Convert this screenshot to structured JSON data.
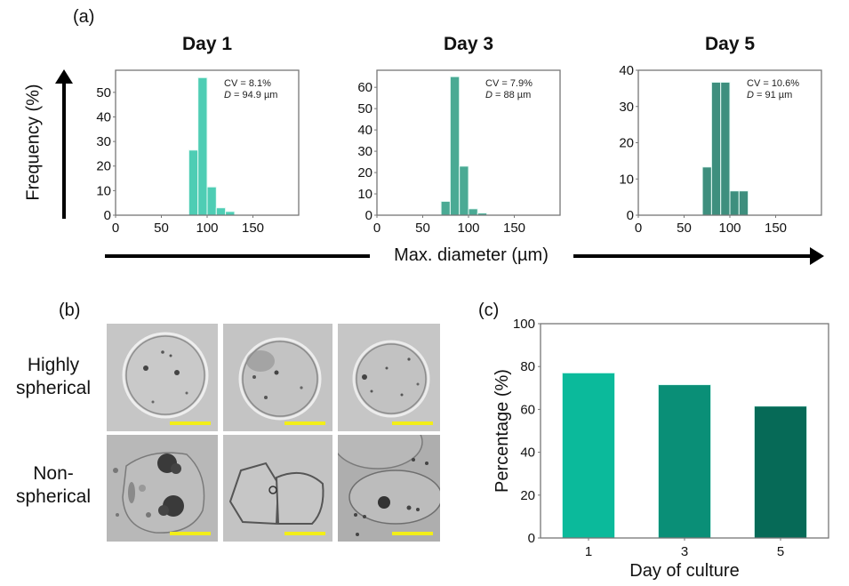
{
  "figure": {
    "panel_a_label": "(a)",
    "panel_b_label": "(b)",
    "panel_c_label": "(c)",
    "shared_ylabel": "Frequency (%)",
    "shared_xlabel": "Max. diameter (µm)"
  },
  "morphology": {
    "rows": [
      {
        "label_line1": "Highly",
        "label_line2": "spherical",
        "type": "spherical"
      },
      {
        "label_line1": "Non-",
        "label_line2": "spherical",
        "type": "non-spherical"
      }
    ],
    "columns": 3,
    "scalebar_color": "#f2ee19"
  },
  "chart_data": [
    {
      "type": "bar",
      "subtype": "histogram",
      "title": "Day 1",
      "xlabel": "Max. diameter (µm)",
      "ylabel": "Frequency (%)",
      "xlim": [
        0,
        200
      ],
      "ylim": [
        0,
        59
      ],
      "xticks": [
        0,
        50,
        100,
        150
      ],
      "yticks": [
        0,
        10,
        20,
        30,
        40,
        50
      ],
      "bin_width": 10,
      "bins": [
        80,
        90,
        100,
        110,
        120
      ],
      "values": [
        26.5,
        56,
        11.5,
        3,
        1.5
      ],
      "annotation_cv": "CV = 8.1%",
      "annotation_d_symbol": "D",
      "annotation_d_value": " = 94.9 µm",
      "color": "#4ecdb4",
      "grid": false
    },
    {
      "type": "bar",
      "subtype": "histogram",
      "title": "Day 3",
      "xlabel": "Max. diameter (µm)",
      "ylabel": "Frequency (%)",
      "xlim": [
        0,
        200
      ],
      "ylim": [
        0,
        68
      ],
      "xticks": [
        0,
        50,
        100,
        150
      ],
      "yticks": [
        0,
        10,
        20,
        30,
        40,
        50,
        60
      ],
      "bin_width": 10,
      "bins": [
        70,
        80,
        90,
        100,
        110
      ],
      "values": [
        6.5,
        65,
        23,
        3,
        1
      ],
      "annotation_cv": "CV = 7.9%",
      "annotation_d_symbol": "D",
      "annotation_d_value": " = 88 µm",
      "color": "#4aaa94",
      "grid": false
    },
    {
      "type": "bar",
      "subtype": "histogram",
      "title": "Day 5",
      "xlabel": "Max. diameter (µm)",
      "ylabel": "Frequency (%)",
      "xlim": [
        0,
        200
      ],
      "ylim": [
        0,
        40
      ],
      "xticks": [
        0,
        50,
        100,
        150
      ],
      "yticks": [
        0,
        10,
        20,
        30,
        40
      ],
      "bin_width": 10,
      "bins": [
        70,
        80,
        90,
        100,
        110
      ],
      "values": [
        13.3,
        36.7,
        36.7,
        6.7,
        6.7
      ],
      "annotation_cv": "CV = 10.6%",
      "annotation_d_symbol": "D",
      "annotation_d_value": " = 91 µm",
      "color": "#3e8f7e",
      "grid": false
    },
    {
      "type": "bar",
      "title": "",
      "xlabel": "Day of culture",
      "ylabel": "Percentage (%)",
      "categories": [
        "1",
        "3",
        "5"
      ],
      "values": [
        77,
        71.5,
        61.5
      ],
      "colors": [
        "#0bba9b",
        "#0a8f77",
        "#066a57"
      ],
      "ylim": [
        0,
        100
      ],
      "yticks": [
        0,
        20,
        40,
        60,
        80,
        100
      ],
      "grid": false
    }
  ]
}
